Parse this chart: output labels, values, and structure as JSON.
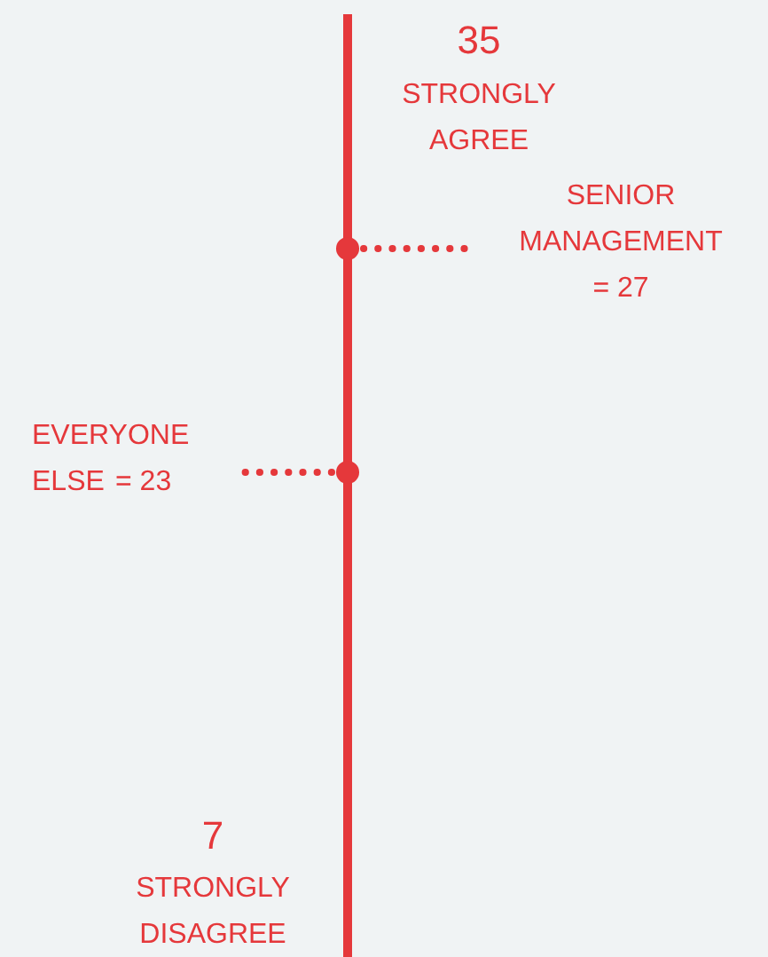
{
  "chart_data": {
    "type": "other",
    "series": [
      {
        "name": "SENIOR MANAGEMENT",
        "color": "#e5383b",
        "values": [
          27
        ],
        "value_labels": [
          "= 27"
        ]
      },
      {
        "name": "EVERYONE ELSE",
        "color": "#e5383b",
        "values": [
          23
        ],
        "value_labels": [
          "= 23"
        ]
      }
    ],
    "annotations": [
      "35",
      "STRONGLY AGREE",
      "7",
      "STRONGLY DISAGREE"
    ]
  }
}
